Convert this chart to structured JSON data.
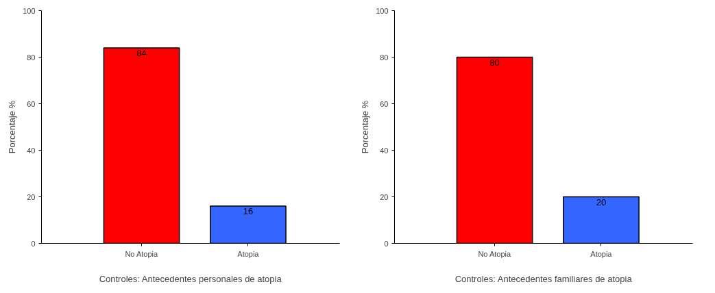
{
  "chart_data": [
    {
      "type": "bar",
      "xlabel": "Controles: Antecedentes personales de atopia",
      "ylabel": "Porcentaje %",
      "categories": [
        "No Atopia",
        "Atopia"
      ],
      "values": [
        84,
        16
      ],
      "colors": [
        "#ff0000",
        "#3366ff"
      ],
      "ylim": [
        0,
        100
      ],
      "yticks": [
        0,
        20,
        40,
        60,
        80,
        100
      ],
      "data_labels": true,
      "grid": false
    },
    {
      "type": "bar",
      "xlabel": "Controles: Antecedentes familiares de atopia",
      "ylabel": "Porcentaje %",
      "categories": [
        "No Atopia",
        "Atopia"
      ],
      "values": [
        80,
        20
      ],
      "colors": [
        "#ff0000",
        "#3366ff"
      ],
      "ylim": [
        0,
        100
      ],
      "yticks": [
        0,
        20,
        40,
        60,
        80,
        100
      ],
      "data_labels": true,
      "grid": false
    }
  ]
}
